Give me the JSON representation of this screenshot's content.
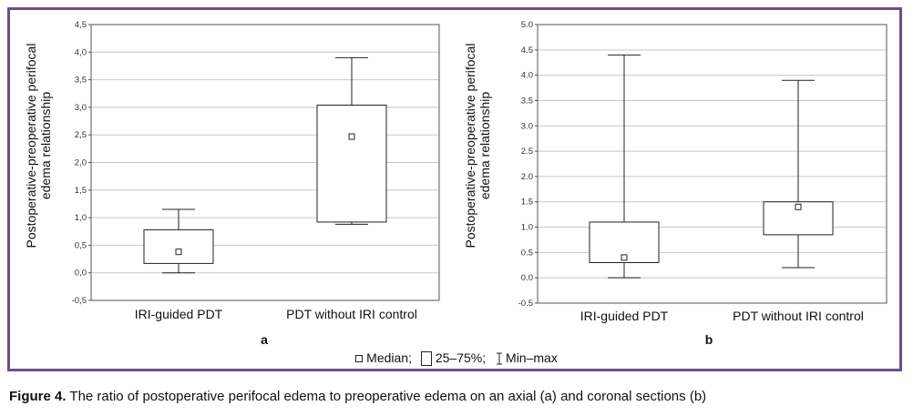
{
  "chart_data": [
    {
      "type": "boxplot",
      "panel": "a",
      "ylabel": "Postoperative-preoperative perifocal edema relationship",
      "ylim": [
        -0.5,
        4.5
      ],
      "yticks": [
        "-0,5",
        "0,0",
        "0,5",
        "1,0",
        "1,5",
        "2,0",
        "2,5",
        "3,0",
        "3,5",
        "4,0",
        "4,5"
      ],
      "yticks_values": [
        -0.5,
        0,
        0.5,
        1,
        1.5,
        2,
        2.5,
        3,
        3.5,
        4,
        4.5
      ],
      "grid": true,
      "categories": [
        "IRI-guided PDT",
        "PDT without IRI control"
      ],
      "boxes": [
        {
          "min": 0.0,
          "q1": 0.17,
          "median": 0.38,
          "q3": 0.78,
          "max": 1.15
        },
        {
          "min": 0.88,
          "q1": 0.92,
          "median": 2.47,
          "q3": 3.04,
          "max": 3.9
        }
      ]
    },
    {
      "type": "boxplot",
      "panel": "b",
      "ylabel": "Postoperative-preoperative perifocal edema relationship",
      "ylim": [
        -0.5,
        5.0
      ],
      "yticks": [
        "-0.5",
        "0.0",
        "0.5",
        "1.0",
        "1.5",
        "2.0",
        "2.5",
        "3.0",
        "3.5",
        "4.0",
        "4.5",
        "5.0"
      ],
      "yticks_values": [
        -0.5,
        0,
        0.5,
        1,
        1.5,
        2,
        2.5,
        3,
        3.5,
        4,
        4.5,
        5
      ],
      "grid": true,
      "categories": [
        "IRI-guided PDT",
        "PDT without IRI control"
      ],
      "boxes": [
        {
          "min": 0.0,
          "q1": 0.3,
          "median": 0.4,
          "q3": 1.1,
          "max": 4.4
        },
        {
          "min": 0.2,
          "q1": 0.85,
          "median": 1.4,
          "q3": 1.5,
          "max": 3.9
        }
      ]
    }
  ],
  "legend": {
    "median": "Median;",
    "box": "25–75%;",
    "whisker": "Min–max"
  },
  "caption": {
    "label": "Figure 4.",
    "text": "The ratio of postoperative perifocal edema to preoperative edema on an axial (a) and coronal sections (b)"
  }
}
